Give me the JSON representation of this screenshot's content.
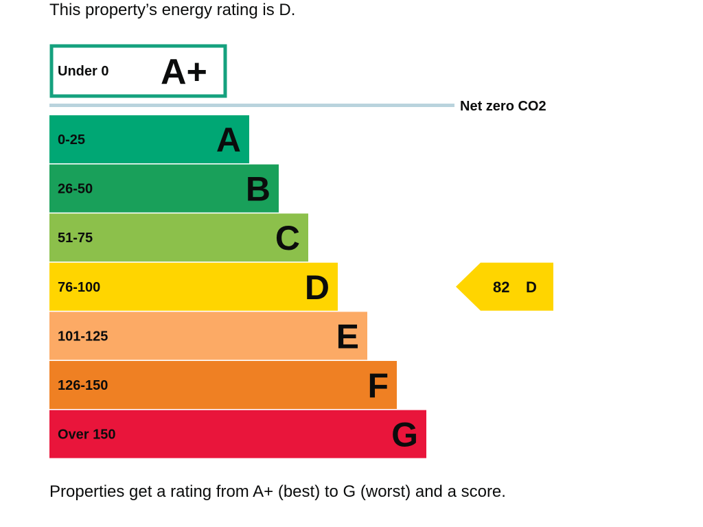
{
  "intro_text": "This property’s energy rating is D.",
  "footer_text": "Properties get a rating from A+ (best) to G (worst) and a score.",
  "chart_data": {
    "type": "bar",
    "top_band": {
      "range": "Under 0",
      "letter": "A+",
      "border_color": "#15a17e"
    },
    "net_zero_label": "Net zero CO2",
    "net_zero_line_color": "#b9d3dd",
    "bands": [
      {
        "range": "0-25",
        "letter": "A",
        "color": "#00a774",
        "text_color": "#0b0c0c"
      },
      {
        "range": "26-50",
        "letter": "B",
        "color": "#19a05a",
        "text_color": "#0b0c0c"
      },
      {
        "range": "51-75",
        "letter": "C",
        "color": "#8cc04b",
        "text_color": "#0b0c0c"
      },
      {
        "range": "76-100",
        "letter": "D",
        "color": "#ffd500",
        "text_color": "#0b0c0c"
      },
      {
        "range": "101-125",
        "letter": "E",
        "color": "#fcaa65",
        "text_color": "#0b0c0c"
      },
      {
        "range": "126-150",
        "letter": "F",
        "color": "#ef8023",
        "text_color": "#0b0c0c"
      },
      {
        "range": "Over 150",
        "letter": "G",
        "color": "#e9153b",
        "text_color": "#0b0c0c"
      }
    ],
    "current": {
      "score": "82",
      "letter": "D",
      "band_index": 3,
      "color": "#ffd500"
    }
  }
}
